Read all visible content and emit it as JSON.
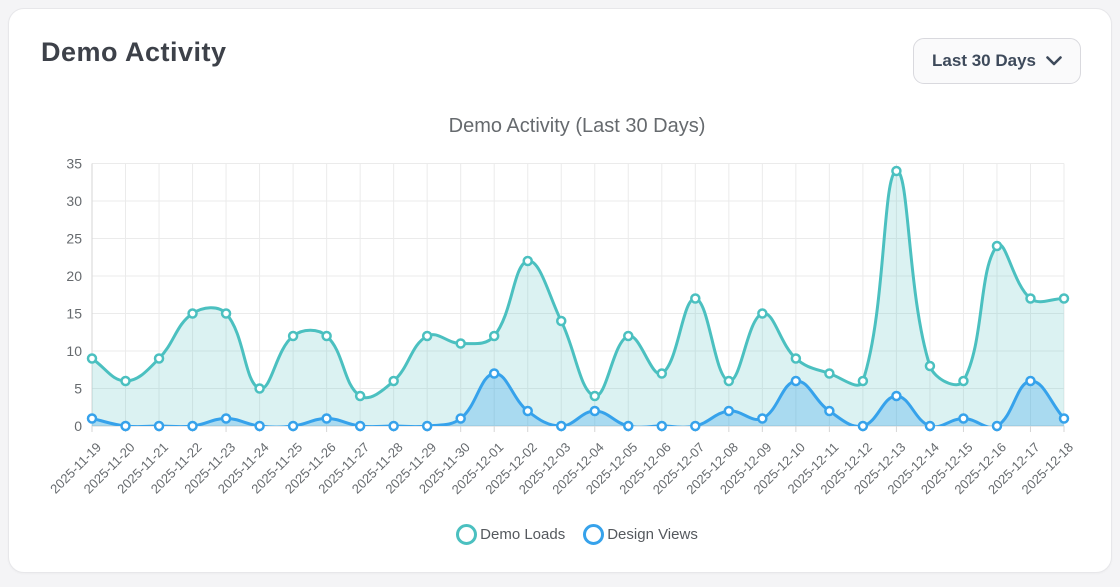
{
  "card": {
    "title": "Demo Activity",
    "range_selector": {
      "label": "Last 30 Days"
    }
  },
  "chart_data": {
    "type": "area",
    "title": "Demo Activity (Last 30 Days)",
    "x": [
      "2025-11-19",
      "2025-11-20",
      "2025-11-21",
      "2025-11-22",
      "2025-11-23",
      "2025-11-24",
      "2025-11-25",
      "2025-11-26",
      "2025-11-27",
      "2025-11-28",
      "2025-11-29",
      "2025-11-30",
      "2025-12-01",
      "2025-12-02",
      "2025-12-03",
      "2025-12-04",
      "2025-12-05",
      "2025-12-06",
      "2025-12-07",
      "2025-12-08",
      "2025-12-09",
      "2025-12-10",
      "2025-12-11",
      "2025-12-12",
      "2025-12-13",
      "2025-12-14",
      "2025-12-15",
      "2025-12-16",
      "2025-12-17",
      "2025-12-18"
    ],
    "series": [
      {
        "name": "Demo Loads",
        "color": "#4bc0c0",
        "fill": "rgba(75,192,192,0.2)",
        "values": [
          9,
          6,
          9,
          15,
          15,
          5,
          12,
          12,
          4,
          6,
          12,
          11,
          12,
          22,
          14,
          4,
          12,
          7,
          17,
          6,
          15,
          9,
          7,
          6,
          34,
          8,
          6,
          24,
          17,
          17
        ]
      },
      {
        "name": "Design Views",
        "color": "#36a2eb",
        "fill": "rgba(54,162,235,0.3)",
        "values": [
          1,
          0,
          0,
          0,
          1,
          0,
          0,
          1,
          0,
          0,
          0,
          1,
          7,
          2,
          0,
          2,
          0,
          0,
          0,
          2,
          1,
          6,
          2,
          0,
          4,
          0,
          1,
          0,
          6,
          1
        ]
      }
    ],
    "ylim": [
      0,
      35
    ],
    "yticks": [
      0,
      5,
      10,
      15,
      20,
      25,
      30,
      35
    ],
    "grid": true,
    "legend_position": "bottom",
    "colors": {
      "grid": "#ebebeb",
      "axis_border": "#d6d6d6",
      "tick_text": "#666a6e"
    }
  }
}
